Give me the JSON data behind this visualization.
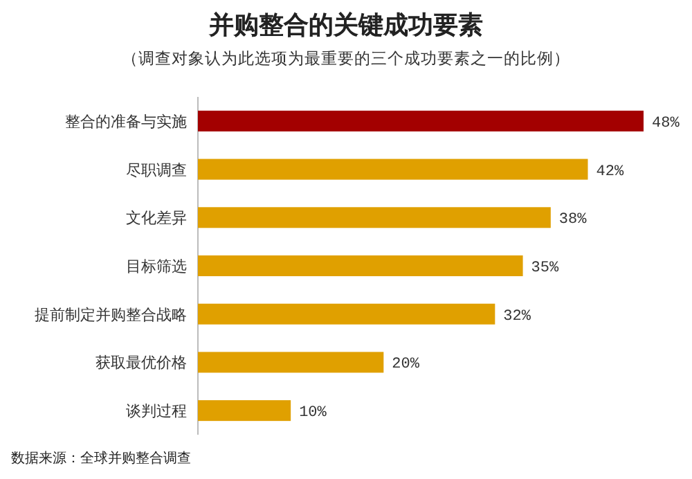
{
  "chart_data": {
    "type": "bar",
    "orientation": "horizontal",
    "title": "并购整合的关键成功要素",
    "subtitle": "（调查对象认为此选项为最重要的三个成功要素之一的比例）",
    "categories": [
      "整合的准备与实施",
      "尽职调查",
      "文化差异",
      "目标筛选",
      "提前制定并购整合战略",
      "获取最优价格",
      "谈判过程"
    ],
    "values": [
      48,
      42,
      38,
      35,
      32,
      20,
      10
    ],
    "value_labels": [
      "48%",
      "42%",
      "38%",
      "35%",
      "32%",
      "20%",
      "10%"
    ],
    "colors": [
      "#a30000",
      "#e0a000",
      "#e0a000",
      "#e0a000",
      "#e0a000",
      "#e0a000",
      "#e0a000"
    ],
    "annotations": [
      "数据来源：全球并购整合调查"
    ]
  }
}
